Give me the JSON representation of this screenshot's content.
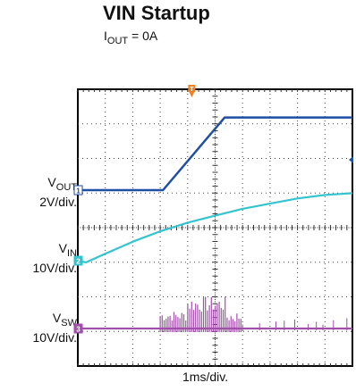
{
  "chart_data": {
    "type": "line",
    "title": "VIN Startup",
    "subtitle": {
      "main": "I",
      "sub": "OUT",
      "rest": " = 0A"
    },
    "xlabel": "1ms/div.",
    "divisions": {
      "x": 10,
      "y": 8
    },
    "trigger_marker": "T",
    "channels": [
      {
        "id": "1",
        "label_main": "V",
        "label_sub": "OUT",
        "scale": "2V/div.",
        "color": "#1f4ea3",
        "x_div": [
          0,
          3.1,
          5.35,
          10
        ],
        "y_div": [
          0,
          0,
          2.1,
          2.1
        ]
      },
      {
        "id": "2",
        "label_main": "V",
        "label_sub": "IN",
        "scale": "10V/div.",
        "color": "#33c4d0",
        "x_div": [
          0,
          0.3,
          1,
          2,
          3,
          4,
          5,
          6,
          7,
          8,
          9,
          10
        ],
        "y_div": [
          0,
          -0.05,
          0.2,
          0.55,
          0.85,
          1.1,
          1.3,
          1.5,
          1.65,
          1.8,
          1.9,
          1.95
        ]
      },
      {
        "id": "3",
        "label_main": "V",
        "label_sub": "SW",
        "scale": "10V/div.",
        "color": "#a050a8",
        "x_div": [
          0,
          10
        ],
        "y_div": [
          0,
          0
        ]
      }
    ]
  }
}
